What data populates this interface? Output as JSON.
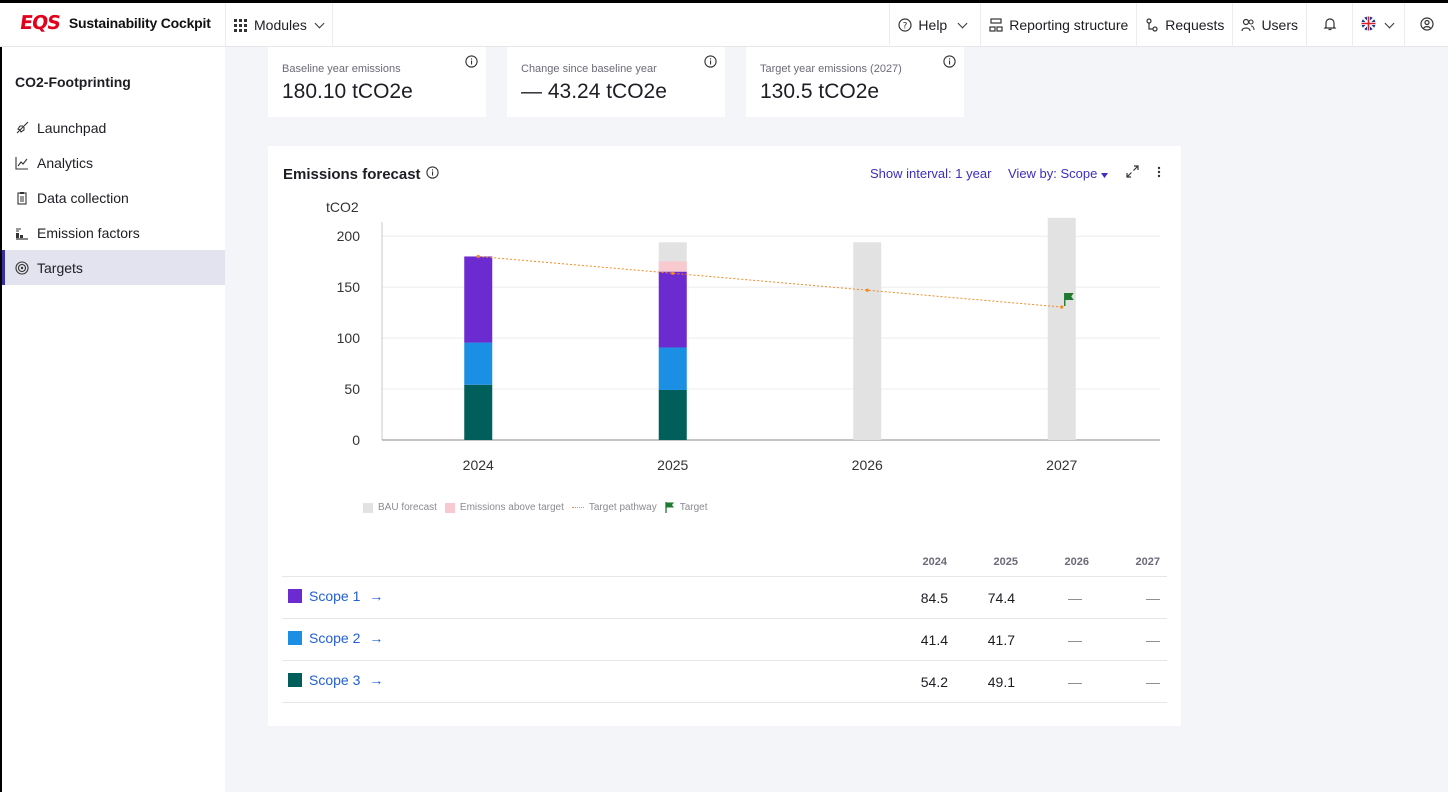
{
  "app": {
    "logo": "EQS",
    "name": "Sustainability Cockpit"
  },
  "topnav": {
    "modules": "Modules",
    "help": "Help",
    "reporting": "Reporting structure",
    "requests": "Requests",
    "users": "Users"
  },
  "sidebar": {
    "title": "CO2-Footprinting",
    "items": [
      {
        "label": "Launchpad",
        "icon": "rocket-icon"
      },
      {
        "label": "Analytics",
        "icon": "chart-line-icon"
      },
      {
        "label": "Data collection",
        "icon": "clipboard-icon"
      },
      {
        "label": "Emission factors",
        "icon": "factor-icon"
      },
      {
        "label": "Targets",
        "icon": "target-icon",
        "active": true
      }
    ]
  },
  "kpis": [
    {
      "label": "Baseline year emissions",
      "value": "180.10 tCO2e"
    },
    {
      "label": "Change since baseline year",
      "value": "— 43.24 tCO2e"
    },
    {
      "label": "Target year emissions (2027)",
      "value": "130.5 tCO2e"
    }
  ],
  "card": {
    "title": "Emissions forecast",
    "interval": "Show interval: 1 year",
    "view_by": "View by: Scope"
  },
  "colors": {
    "scope1": "#6c2bd0",
    "scope2": "#1a8fe3",
    "scope3": "#005f5a",
    "bau": "#e2e2e2",
    "above": "#f9c9d0",
    "pathway": "#f08a24",
    "target": "#1e7a2e"
  },
  "chart_data": {
    "type": "bar",
    "ylabel": "tCO2",
    "ylim": [
      0,
      210
    ],
    "yticks": [
      0,
      50,
      100,
      150,
      200
    ],
    "categories": [
      "2024",
      "2025",
      "2026",
      "2027"
    ],
    "series": [
      {
        "name": "Scope 1",
        "values": [
          84.5,
          74.4,
          null,
          null
        ]
      },
      {
        "name": "Scope 2",
        "values": [
          41.4,
          41.7,
          null,
          null
        ]
      },
      {
        "name": "Scope 3",
        "values": [
          54.2,
          49.1,
          null,
          null
        ]
      },
      {
        "name": "Emissions above target",
        "values": [
          null,
          10,
          null,
          null
        ]
      },
      {
        "name": "BAU forecast",
        "values": [
          null,
          194,
          194,
          218
        ]
      },
      {
        "name": "Target pathway",
        "values": [
          180.1,
          163.6,
          147.0,
          130.5
        ]
      },
      {
        "name": "Target",
        "values": [
          null,
          null,
          null,
          130.5
        ]
      }
    ],
    "legend": [
      "BAU forecast",
      "Emissions above target",
      "Target pathway",
      "Target"
    ],
    "legend_position": "bottom-left"
  },
  "table": {
    "years": [
      "2024",
      "2025",
      "2026",
      "2027"
    ],
    "rows": [
      {
        "name": "Scope 1",
        "values": [
          "84.5",
          "74.4",
          "—",
          "—"
        ]
      },
      {
        "name": "Scope 2",
        "values": [
          "41.4",
          "41.7",
          "—",
          "—"
        ]
      },
      {
        "name": "Scope 3",
        "values": [
          "54.2",
          "49.1",
          "—",
          "—"
        ]
      }
    ]
  }
}
